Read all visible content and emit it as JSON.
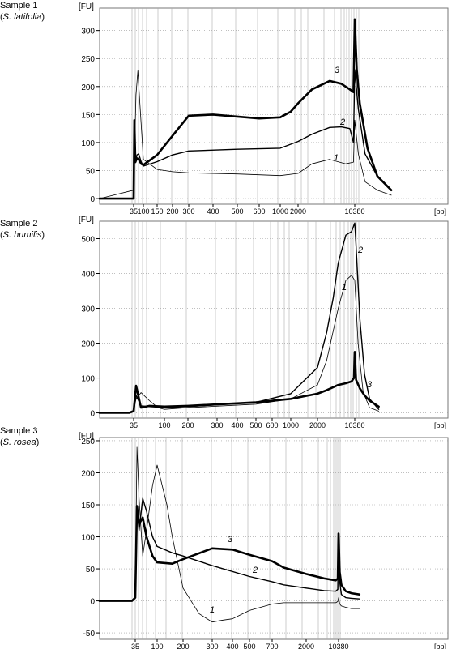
{
  "chart_data": [
    {
      "type": "line",
      "sample_label": "Sample 1",
      "species": "S. latifolia",
      "ylabel": "[FU]",
      "xlabel": "[bp]",
      "ylim": [
        -10,
        340
      ],
      "y_ticks": [
        0,
        50,
        100,
        150,
        200,
        250,
        300
      ],
      "x_ticks": [
        "35",
        "100",
        "150",
        "200",
        "300",
        "400",
        "500",
        "600",
        "1000",
        "2000",
        "10380"
      ],
      "grid": true,
      "series": [
        {
          "name": "1",
          "weight": "thin",
          "x": [
            35,
            45,
            55,
            70,
            100,
            150,
            200,
            300,
            500,
            1000,
            2000,
            3000,
            5000,
            8000,
            10000,
            10380,
            11500,
            14000,
            20000,
            30000
          ],
          "y": [
            15,
            185,
            228,
            165,
            70,
            52,
            48,
            46,
            44,
            41,
            45,
            62,
            70,
            62,
            65,
            140,
            80,
            30,
            15,
            6
          ]
        },
        {
          "name": "2",
          "weight": "medium",
          "x": [
            35,
            38,
            42,
            50,
            60,
            80,
            100,
            150,
            200,
            300,
            500,
            1000,
            2000,
            3000,
            5000,
            7000,
            9000,
            10000,
            10380,
            11500,
            14000,
            20000,
            30000
          ],
          "y": [
            0,
            138,
            65,
            78,
            80,
            65,
            58,
            66,
            78,
            85,
            88,
            90,
            102,
            115,
            127,
            128,
            125,
            100,
            230,
            160,
            80,
            40,
            15
          ]
        },
        {
          "name": "3",
          "weight": "thick",
          "x": [
            35,
            38,
            42,
            50,
            60,
            80,
            100,
            150,
            200,
            300,
            400,
            600,
            1000,
            1500,
            2000,
            3000,
            5000,
            7000,
            9000,
            10000,
            10380,
            11000,
            12000,
            15000,
            20000,
            30000
          ],
          "y": [
            0,
            140,
            65,
            72,
            70,
            62,
            60,
            78,
            112,
            148,
            150,
            143,
            145,
            155,
            170,
            195,
            210,
            205,
            195,
            190,
            320,
            230,
            170,
            90,
            40,
            15
          ]
        }
      ],
      "annotations": [
        "1",
        "2",
        "3"
      ]
    },
    {
      "type": "line",
      "sample_label": "Sample 2",
      "species": "S. humilis",
      "ylabel": "[FU]",
      "xlabel": "[bp]",
      "ylim": [
        -15,
        550
      ],
      "y_ticks": [
        0,
        100,
        200,
        300,
        400,
        500
      ],
      "x_ticks": [
        "35",
        "100",
        "200",
        "300",
        "400",
        "500",
        "600",
        "1000",
        "2000",
        "10380"
      ],
      "grid": true,
      "series": [
        {
          "name": "1",
          "weight": "thin",
          "x": [
            30,
            35,
            38,
            45,
            60,
            80,
            100,
            200,
            500,
            1000,
            2000,
            3000,
            5000,
            7000,
            9000,
            10380,
            12000,
            15000,
            20000,
            30000
          ],
          "y": [
            0,
            5,
            40,
            58,
            35,
            15,
            10,
            15,
            25,
            40,
            80,
            150,
            300,
            380,
            395,
            380,
            200,
            60,
            15,
            5
          ]
        },
        {
          "name": "2",
          "weight": "medium",
          "x": [
            30,
            35,
            38,
            45,
            60,
            100,
            200,
            500,
            1000,
            2000,
            3000,
            4000,
            5000,
            7000,
            9000,
            10380,
            11000,
            13000,
            16000,
            20000,
            30000
          ],
          "y": [
            0,
            5,
            50,
            20,
            18,
            15,
            18,
            30,
            55,
            130,
            230,
            330,
            430,
            510,
            520,
            545,
            480,
            270,
            110,
            40,
            10
          ]
        },
        {
          "name": "3",
          "weight": "thick",
          "x": [
            30,
            35,
            38,
            45,
            60,
            100,
            200,
            500,
            1000,
            2000,
            3000,
            5000,
            7000,
            9000,
            10000,
            10380,
            11000,
            13000,
            16000,
            20000,
            30000
          ],
          "y": [
            0,
            5,
            78,
            15,
            20,
            18,
            20,
            30,
            40,
            55,
            65,
            80,
            85,
            90,
            100,
            175,
            95,
            70,
            50,
            35,
            18
          ]
        }
      ],
      "annotations": [
        "1",
        "2",
        "3"
      ]
    },
    {
      "type": "line",
      "sample_label": "Sample 3",
      "species": "S. rosea",
      "ylabel": "[FU]",
      "xlabel": "[bp]",
      "ylim": [
        -60,
        255
      ],
      "y_ticks": [
        -50,
        0,
        50,
        100,
        150,
        200,
        250
      ],
      "x_ticks": [
        "35",
        "100",
        "200",
        "300",
        "400",
        "500",
        "700",
        "2000",
        "10380"
      ],
      "grid": true,
      "series": [
        {
          "name": "1",
          "weight": "thin",
          "x": [
            30,
            35,
            38,
            42,
            50,
            60,
            80,
            100,
            130,
            150,
            200,
            250,
            300,
            350,
            400,
            500,
            700,
            1000,
            2000,
            5000,
            9000,
            10000,
            10380,
            11000,
            12000,
            15000,
            20000,
            30000
          ],
          "y": [
            0,
            5,
            240,
            160,
            70,
            110,
            180,
            212,
            150,
            100,
            20,
            -20,
            -33,
            -30,
            -28,
            -15,
            -5,
            -3,
            -3,
            -3,
            -3,
            -1,
            5,
            -5,
            -8,
            -10,
            -12,
            -12
          ]
        },
        {
          "name": "2",
          "weight": "medium",
          "x": [
            30,
            35,
            38,
            42,
            50,
            60,
            80,
            100,
            150,
            200,
            300,
            500,
            700,
            1000,
            2000,
            5000,
            9000,
            10000,
            10380,
            11000,
            12000,
            15000,
            20000,
            30000
          ],
          "y": [
            0,
            5,
            145,
            110,
            160,
            140,
            100,
            85,
            75,
            70,
            55,
            38,
            30,
            25,
            20,
            16,
            15,
            18,
            105,
            30,
            10,
            5,
            4,
            3
          ]
        },
        {
          "name": "3",
          "weight": "thick",
          "x": [
            30,
            35,
            38,
            42,
            50,
            60,
            80,
            100,
            150,
            200,
            300,
            400,
            500,
            700,
            1000,
            2000,
            5000,
            9000,
            10000,
            10380,
            11000,
            12000,
            15000,
            20000,
            30000
          ],
          "y": [
            0,
            5,
            148,
            120,
            130,
            100,
            70,
            60,
            58,
            65,
            82,
            80,
            72,
            62,
            52,
            42,
            35,
            32,
            35,
            105,
            45,
            25,
            15,
            12,
            10
          ]
        }
      ],
      "annotations": [
        "1",
        "2",
        "3"
      ]
    }
  ]
}
